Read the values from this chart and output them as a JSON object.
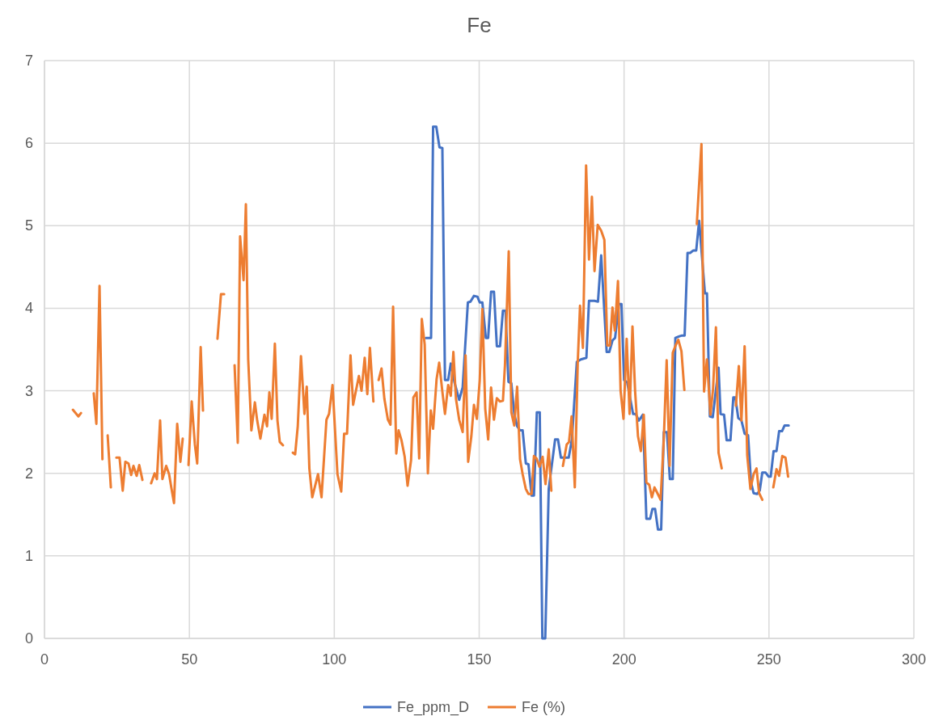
{
  "chart_data": {
    "type": "line",
    "title": "Fe",
    "xlim": [
      0,
      300
    ],
    "xticks": [
      0,
      50,
      100,
      150,
      200,
      250,
      300
    ],
    "ylim": [
      0,
      7
    ],
    "yticks": [
      0,
      1,
      2,
      3,
      4,
      5,
      6,
      7
    ],
    "grid": true,
    "legend": "bottom",
    "marker": "none",
    "line_style": "solid",
    "series": [
      {
        "name": "Fe_ppm_D",
        "color": "#4472c4",
        "x": [
          131.6,
          133.4,
          134.1,
          135.2,
          136.3,
          137.3,
          138.2,
          139.3,
          140.2,
          141.5,
          143.1,
          144.3,
          146.1,
          147,
          148.2,
          149.4,
          150.2,
          151.1,
          152.3,
          153.1,
          154.1,
          155.1,
          156.1,
          157.2,
          158.2,
          159.1,
          160.1,
          161.1,
          162.1,
          163.1,
          164.1,
          165,
          166.1,
          167,
          168.1,
          168.9,
          169.9,
          170.9,
          171.8,
          172.8,
          174,
          176.2,
          177.2,
          178.2,
          180.9,
          182,
          183.7,
          185.1,
          187,
          187.9,
          189.8,
          191,
          192.1,
          194,
          194.9,
          196,
          196.9,
          198.2,
          199.1,
          200,
          201.1,
          203.1,
          204,
          205.1,
          206.5,
          207.7,
          209,
          209.8,
          210.7,
          211.7,
          212.8,
          213.7,
          214.8,
          215.8,
          216.8,
          217.7,
          219.1,
          220,
          220.9,
          221.9,
          222.8,
          223.9,
          224.9,
          225.9,
          227.9,
          228.6,
          229.6,
          230.6,
          232.6,
          233.3,
          234.5,
          235.4,
          236.7,
          237.7,
          238.4,
          239.4,
          240.5,
          241.6,
          242.8,
          243.8,
          244.7,
          245.9,
          246.8,
          247.7,
          248.8,
          249.9,
          250.6,
          251.6,
          252.6,
          253.5,
          254.5,
          255.4,
          256.8
        ],
        "values": [
          3.64,
          3.64,
          6.2,
          6.2,
          5.95,
          5.94,
          3.13,
          3.13,
          3.33,
          3.1,
          2.89,
          3.04,
          4.07,
          4.08,
          4.15,
          4.14,
          4.07,
          4.07,
          3.64,
          3.64,
          4.2,
          4.2,
          3.54,
          3.54,
          3.97,
          3.97,
          3.11,
          3.09,
          2.72,
          2.57,
          2.52,
          2.52,
          2.12,
          2.11,
          1.73,
          1.73,
          2.74,
          2.74,
          0,
          0,
          1.81,
          2.41,
          2.41,
          2.19,
          2.19,
          2.41,
          3.35,
          3.38,
          3.4,
          4.09,
          4.09,
          4.08,
          4.64,
          3.47,
          3.47,
          3.61,
          3.64,
          4.05,
          4.05,
          3.13,
          3.1,
          2.72,
          2.72,
          2.64,
          2.71,
          1.45,
          1.45,
          1.57,
          1.57,
          1.32,
          1.32,
          2.5,
          2.5,
          1.93,
          1.93,
          3.64,
          3.66,
          3.67,
          3.67,
          4.67,
          4.67,
          4.7,
          4.7,
          5.06,
          4.18,
          4.18,
          2.69,
          2.68,
          3.28,
          2.72,
          2.71,
          2.4,
          2.4,
          2.92,
          2.92,
          2.67,
          2.64,
          2.48,
          2.46,
          1.89,
          1.76,
          1.75,
          1.79,
          2.01,
          2.01,
          1.96,
          1.96,
          2.27,
          2.27,
          2.51,
          2.51,
          2.58,
          2.58
        ]
      },
      {
        "name": "Fe (%)",
        "color": "#ed7d31",
        "x": [
          9.8,
          11.7,
          12.6,
          15,
          17,
          17.9,
          19,
          20,
          21,
          21.8,
          22.9,
          24,
          24.8,
          25.9,
          27,
          27.9,
          29,
          29.9,
          30.7,
          31.8,
          32.7,
          33.8,
          35,
          36.8,
          38,
          38.8,
          39.9,
          40.7,
          42,
          43,
          43.8,
          44.7,
          45.8,
          46.9,
          47.7,
          48.7,
          49.7,
          50.8,
          51.9,
          52.7,
          53.9,
          54.7,
          57,
          59.7,
          60.9,
          62,
          64,
          65.6,
          66.7,
          67.5,
          68.7,
          69.5,
          70.3,
          71.4,
          72.6,
          73.4,
          74.5,
          75.9,
          76.8,
          77.6,
          78.4,
          79.5,
          80.4,
          81.2,
          82.3,
          84,
          85.7,
          86.5,
          87.4,
          88.5,
          89.7,
          90.5,
          91.4,
          92.4,
          94.4,
          95.6,
          97.3,
          98.2,
          99.4,
          101.1,
          102.4,
          103.4,
          104.4,
          105.6,
          106.5,
          108.5,
          109.4,
          110.5,
          111.4,
          112.3,
          113.5,
          114.4,
          115.3,
          116.3,
          117.3,
          118.5,
          119.4,
          120.3,
          121.4,
          122.2,
          123.2,
          124.3,
          125.3,
          126.5,
          127.3,
          128.4,
          129.3,
          130.2,
          131.2,
          132.3,
          133.3,
          134.1,
          135.3,
          136.2,
          137.3,
          138.2,
          139.3,
          140.2,
          141.1,
          142,
          143.1,
          144.3,
          145.3,
          146.2,
          147.3,
          148.2,
          149.2,
          150.2,
          151.1,
          152.1,
          153.1,
          154.1,
          155.1,
          156.1,
          157.2,
          158.2,
          158.9,
          160.2,
          161.1,
          162.1,
          163.1,
          164.1,
          165,
          166.1,
          167,
          168.1,
          168.9,
          169.8,
          170.8,
          171.9,
          172.9,
          174,
          174.9,
          177,
          178.9,
          180.2,
          181,
          181.9,
          183,
          184,
          184.8,
          185.8,
          186.9,
          187.9,
          188.9,
          189.8,
          190.9,
          192.1,
          193.2,
          194.2,
          195.1,
          196,
          196.8,
          197.9,
          198.8,
          199.8,
          200.9,
          201.9,
          202.9,
          203.8,
          204.8,
          205.8,
          206.8,
          207.7,
          208.7,
          209.6,
          210.5,
          211.5,
          212.6,
          213.7,
          214.7,
          215.7,
          216.8,
          217.8,
          218.7,
          219.8,
          220.8,
          223,
          225.1,
          226.7,
          227.6,
          228.6,
          229.8,
          230.7,
          231.7,
          232.6,
          233.7,
          236,
          238.6,
          239.6,
          240.5,
          241.6,
          242.5,
          243.6,
          244.7,
          245.7,
          246.6,
          247.7,
          249.5,
          251.5,
          252.6,
          253.5,
          254.6,
          255.7,
          256.6
        ],
        "values": [
          2.77,
          2.69,
          2.73,
          null,
          2.97,
          2.6,
          4.27,
          2.17,
          null,
          2.46,
          1.83,
          null,
          2.19,
          2.19,
          1.79,
          2.14,
          2.12,
          1.98,
          2.09,
          1.97,
          2.1,
          1.92,
          null,
          1.88,
          2,
          1.93,
          2.64,
          1.93,
          2.09,
          1.99,
          1.82,
          1.64,
          2.6,
          2.14,
          2.42,
          null,
          2.1,
          2.87,
          2.35,
          2.12,
          3.53,
          2.76,
          null,
          3.63,
          4.17,
          4.17,
          null,
          3.31,
          2.37,
          4.87,
          4.34,
          5.26,
          3.38,
          2.52,
          2.86,
          2.64,
          2.42,
          2.71,
          2.57,
          2.98,
          2.66,
          3.57,
          2.64,
          2.38,
          2.34,
          null,
          2.25,
          2.23,
          2.57,
          3.42,
          2.72,
          3.05,
          2.06,
          1.71,
          1.99,
          1.71,
          2.65,
          2.72,
          3.07,
          1.99,
          1.78,
          2.48,
          2.48,
          3.43,
          2.83,
          3.18,
          3,
          3.4,
          2.96,
          3.52,
          2.87,
          null,
          3.13,
          3.27,
          2.9,
          2.65,
          2.59,
          4.02,
          2.24,
          2.52,
          2.4,
          2.2,
          1.85,
          2.16,
          2.92,
          2.98,
          2.18,
          3.87,
          3.56,
          2,
          2.76,
          2.54,
          3.14,
          3.34,
          2.99,
          2.72,
          3.07,
          2.94,
          3.47,
          2.9,
          2.65,
          2.5,
          3.43,
          2.14,
          2.45,
          2.83,
          2.66,
          3.13,
          3.99,
          2.78,
          2.41,
          3.04,
          2.65,
          2.91,
          2.87,
          2.88,
          3.31,
          4.69,
          2.74,
          2.58,
          3.05,
          2.17,
          1.99,
          1.81,
          1.75,
          1.75,
          2.21,
          2.18,
          2.08,
          2.2,
          1.87,
          2.29,
          1.79,
          null,
          2.09,
          2.35,
          2.38,
          2.69,
          1.83,
          3.33,
          4.03,
          3.52,
          5.73,
          4.59,
          5.35,
          4.45,
          5.01,
          4.94,
          4.83,
          3.55,
          3.55,
          4.01,
          3.73,
          4.33,
          3,
          2.66,
          3.63,
          2.72,
          3.78,
          3,
          2.45,
          2.27,
          2.71,
          1.89,
          1.86,
          1.71,
          1.83,
          1.76,
          1.68,
          2.41,
          3.37,
          2.09,
          3.46,
          3.55,
          3.62,
          3.48,
          3.01,
          null,
          5.02,
          5.99,
          2.99,
          3.38,
          2.71,
          3.02,
          3.77,
          2.25,
          2.06,
          null,
          2.82,
          3.3,
          2.64,
          3.54,
          2.22,
          1.81,
          1.99,
          2.06,
          1.76,
          1.68,
          null,
          1.83,
          2.05,
          1.97,
          2.21,
          2.19,
          1.96
        ]
      }
    ]
  }
}
